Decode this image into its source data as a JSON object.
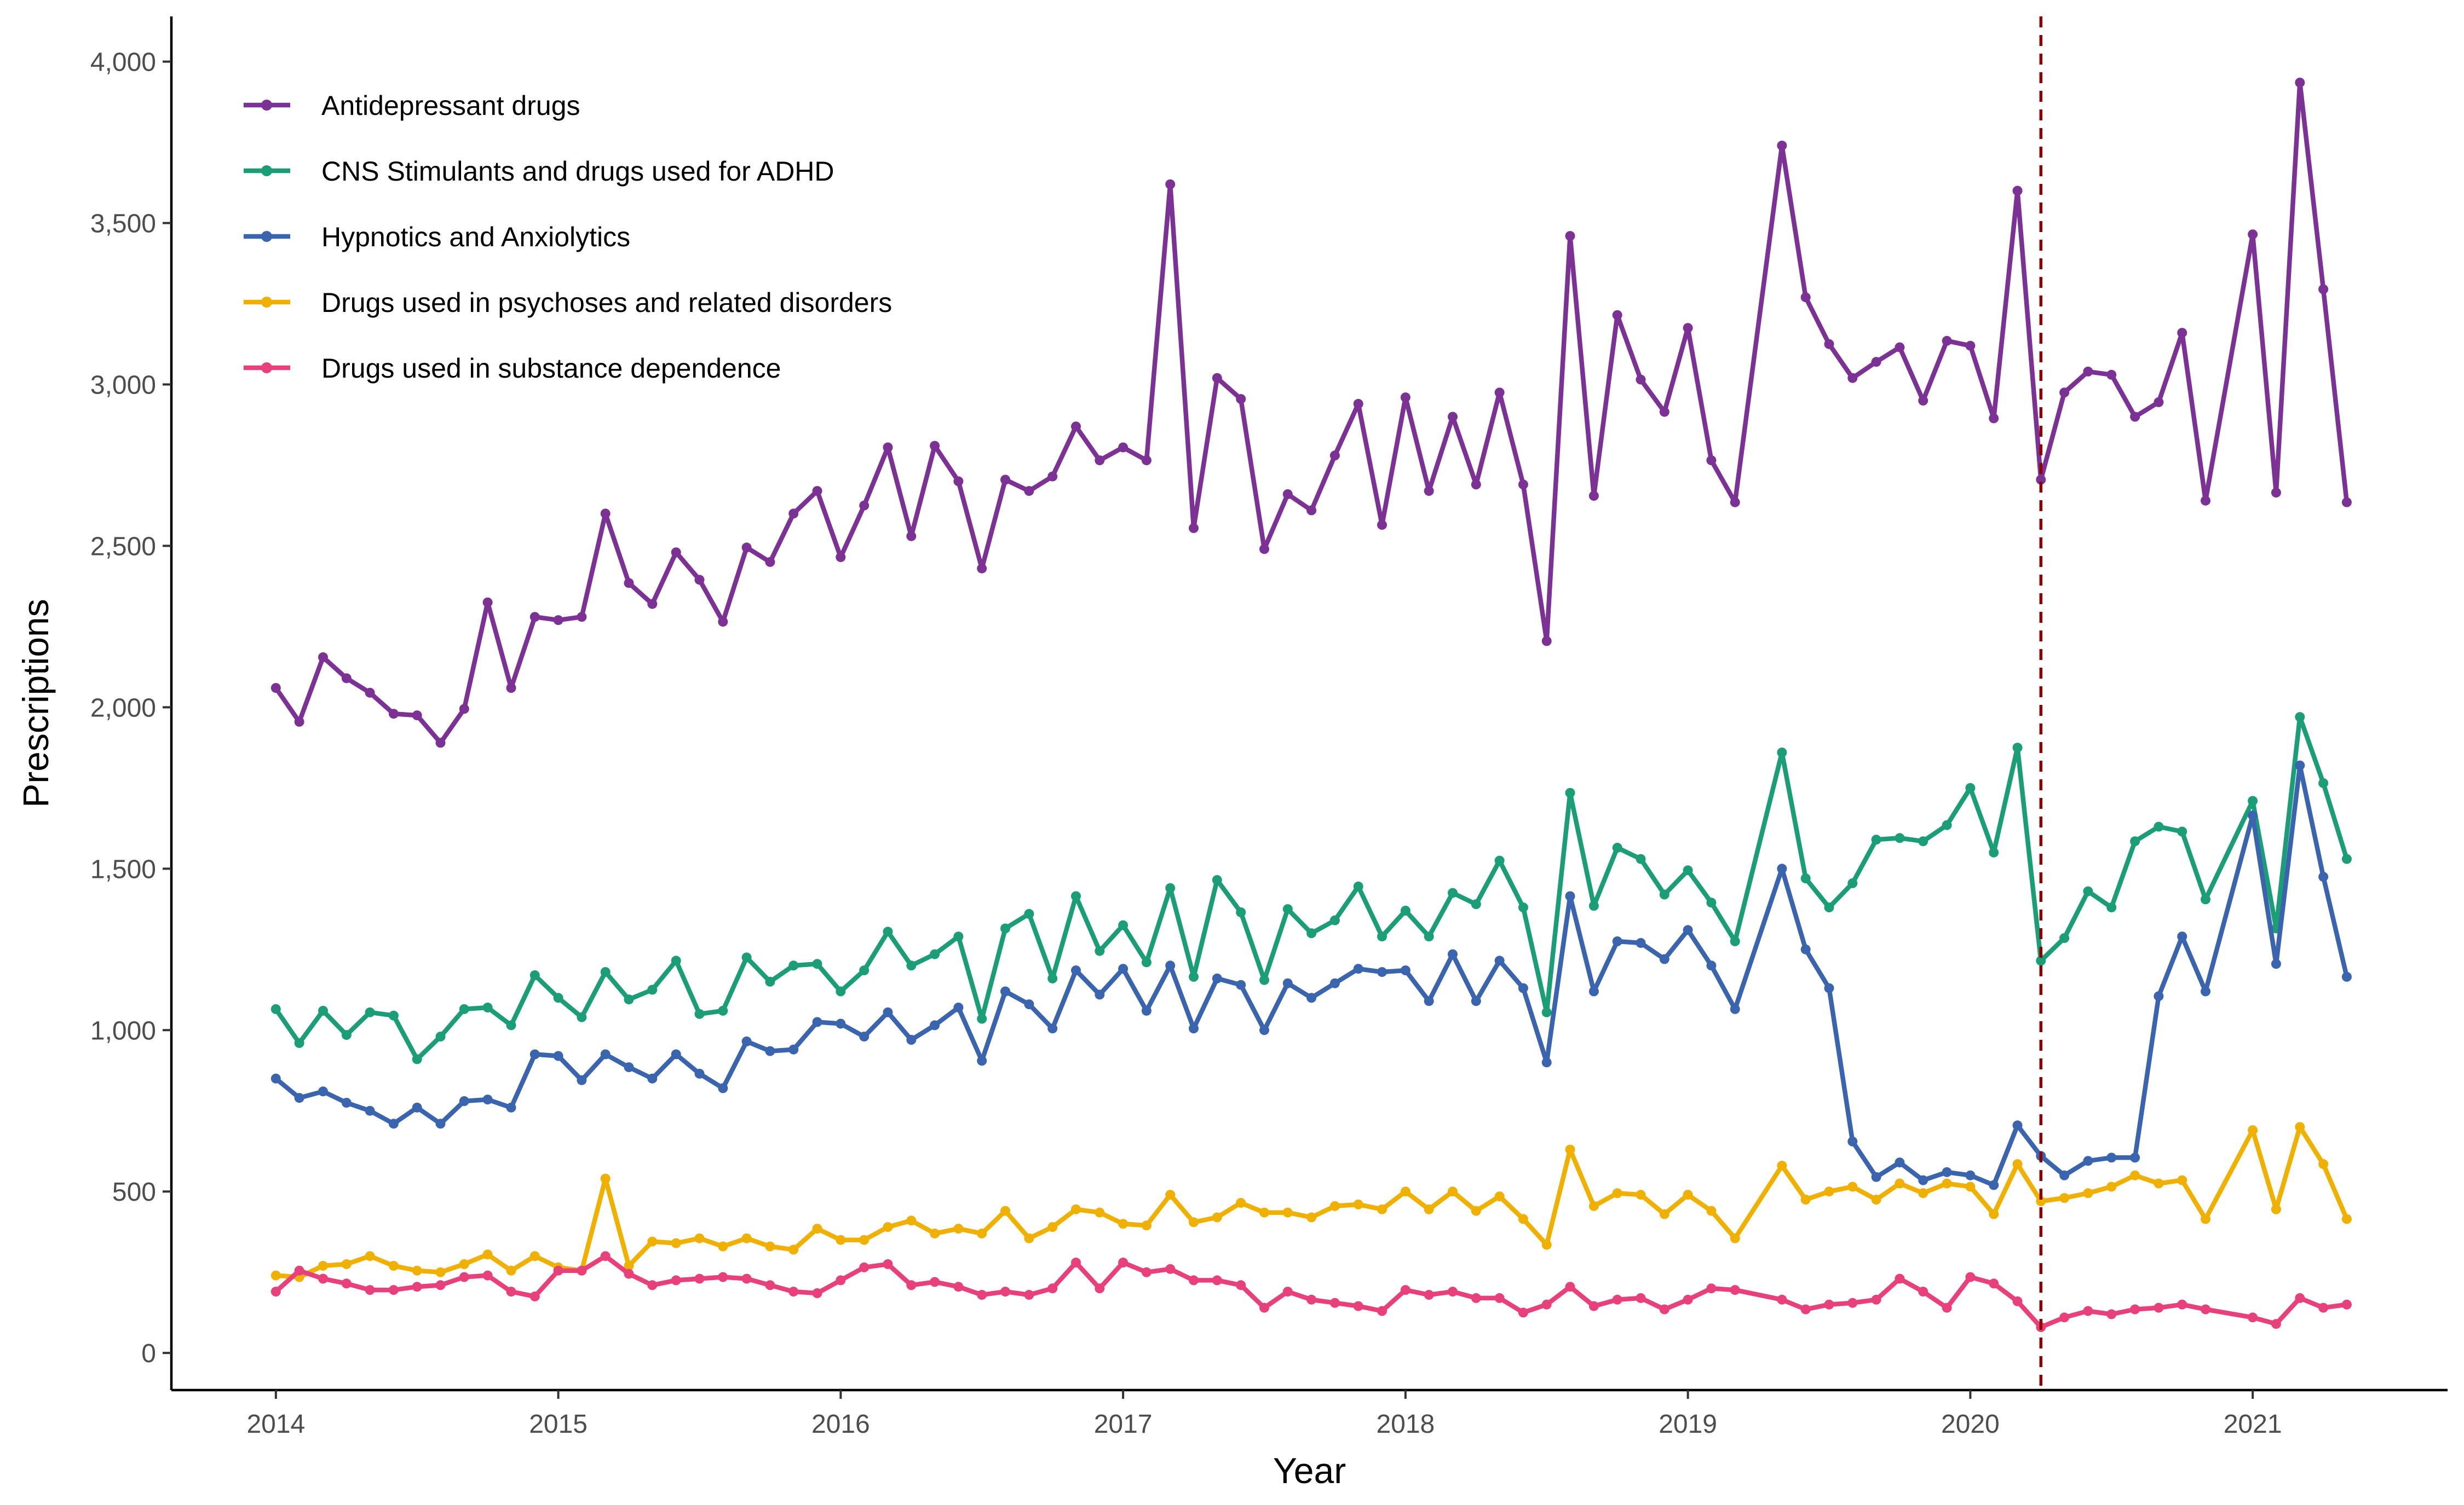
{
  "chart_data": {
    "type": "line",
    "title": "",
    "xlabel": "Year",
    "ylabel": "Prescriptions",
    "xlim": [
      2013.63,
      2021.69
    ],
    "ylim": [
      -115,
      4140
    ],
    "x_ticks": [
      2014,
      2015,
      2016,
      2017,
      2018,
      2019,
      2020,
      2021
    ],
    "x_tick_labels": [
      "2014",
      "2015",
      "2016",
      "2017",
      "2018",
      "2019",
      "2020",
      "2021"
    ],
    "y_ticks": [
      0,
      500,
      1000,
      1500,
      2000,
      2500,
      3000,
      3500,
      4000
    ],
    "y_tick_labels": [
      "0",
      "500",
      "1,000",
      "1,500",
      "2,000",
      "2,500",
      "3,000",
      "3,500",
      "4,000"
    ],
    "grid": false,
    "legend_position": "top-left",
    "reference_line": {
      "x": 2020.25,
      "color": "#8b0000",
      "style": "dashed"
    },
    "x": [
      2014.0,
      2014.083,
      2014.167,
      2014.25,
      2014.333,
      2014.417,
      2014.5,
      2014.583,
      2014.667,
      2014.75,
      2014.833,
      2014.917,
      2015.0,
      2015.083,
      2015.167,
      2015.25,
      2015.333,
      2015.417,
      2015.5,
      2015.583,
      2015.667,
      2015.75,
      2015.833,
      2015.917,
      2016.0,
      2016.083,
      2016.167,
      2016.25,
      2016.333,
      2016.417,
      2016.5,
      2016.583,
      2016.667,
      2016.75,
      2016.833,
      2016.917,
      2017.0,
      2017.083,
      2017.167,
      2017.25,
      2017.333,
      2017.417,
      2017.5,
      2017.583,
      2017.667,
      2017.75,
      2017.833,
      2017.917,
      2018.0,
      2018.083,
      2018.167,
      2018.25,
      2018.333,
      2018.417,
      2018.5,
      2018.583,
      2018.667,
      2018.75,
      2018.833,
      2018.917,
      2019.0,
      2019.083,
      2019.167,
      2019.333,
      2019.417,
      2019.5,
      2019.583,
      2019.667,
      2019.75,
      2019.833,
      2019.917,
      2020.0,
      2020.083,
      2020.167,
      2020.25,
      2020.333,
      2020.417,
      2020.5,
      2020.583,
      2020.667,
      2020.75,
      2020.833,
      2021.0,
      2021.083,
      2021.167,
      2021.25,
      2021.333
    ],
    "series": [
      {
        "name": "Antidepressant drugs",
        "color": "#7b3294",
        "values": [
          2060,
          1955,
          2155,
          2090,
          2045,
          1980,
          1975,
          1890,
          1995,
          2325,
          2060,
          2280,
          2270,
          2280,
          2600,
          2385,
          2320,
          2480,
          2395,
          2265,
          2495,
          2450,
          2600,
          2670,
          2465,
          2625,
          2805,
          2530,
          2810,
          2700,
          2430,
          2705,
          2670,
          2715,
          2870,
          2765,
          2805,
          2765,
          3620,
          2555,
          3020,
          2955,
          2490,
          2660,
          2610,
          2780,
          2940,
          2565,
          2960,
          2670,
          2900,
          2690,
          2975,
          2690,
          2205,
          3460,
          2655,
          3215,
          3015,
          2915,
          3175,
          2765,
          2635,
          3740,
          3270,
          3125,
          3020,
          3070,
          3115,
          2950,
          3135,
          3120,
          2895,
          3600,
          2705,
          2975,
          3040,
          3030,
          2900,
          2945,
          3160,
          2640,
          3465,
          2665,
          3935,
          3295,
          2635
        ]
      },
      {
        "name": "CNS Stimulants and drugs used for ADHD",
        "color": "#1b9e77",
        "values": [
          1065,
          960,
          1060,
          985,
          1055,
          1045,
          910,
          980,
          1065,
          1070,
          1015,
          1170,
          1100,
          1040,
          1180,
          1095,
          1125,
          1215,
          1050,
          1060,
          1225,
          1150,
          1200,
          1205,
          1120,
          1185,
          1305,
          1200,
          1235,
          1290,
          1035,
          1315,
          1360,
          1160,
          1415,
          1245,
          1325,
          1210,
          1440,
          1165,
          1465,
          1365,
          1155,
          1375,
          1300,
          1340,
          1445,
          1290,
          1370,
          1290,
          1425,
          1390,
          1525,
          1380,
          1055,
          1735,
          1385,
          1565,
          1530,
          1420,
          1495,
          1395,
          1275,
          1860,
          1470,
          1380,
          1455,
          1590,
          1595,
          1585,
          1635,
          1750,
          1550,
          1875,
          1215,
          1285,
          1430,
          1380,
          1585,
          1630,
          1615,
          1405,
          1710,
          1315,
          1970,
          1765,
          1530
        ]
      },
      {
        "name": "Hypnotics and Anxiolytics",
        "color": "#3a65ae",
        "values": [
          850,
          790,
          810,
          775,
          750,
          710,
          760,
          710,
          780,
          785,
          760,
          925,
          920,
          845,
          925,
          885,
          850,
          925,
          865,
          820,
          965,
          935,
          940,
          1025,
          1020,
          980,
          1055,
          970,
          1015,
          1070,
          905,
          1120,
          1080,
          1005,
          1185,
          1110,
          1190,
          1060,
          1200,
          1005,
          1160,
          1140,
          1000,
          1145,
          1100,
          1145,
          1190,
          1180,
          1185,
          1090,
          1235,
          1090,
          1215,
          1130,
          900,
          1415,
          1120,
          1275,
          1270,
          1220,
          1310,
          1200,
          1065,
          1500,
          1250,
          1130,
          655,
          545,
          590,
          535,
          560,
          550,
          520,
          705,
          610,
          550,
          595,
          605,
          605,
          1105,
          1290,
          1120,
          1665,
          1205,
          1820,
          1475,
          1165
        ]
      },
      {
        "name": "Drugs used in psychoses and related disorders",
        "color": "#efb000",
        "values": [
          240,
          235,
          270,
          275,
          300,
          270,
          255,
          250,
          275,
          305,
          255,
          300,
          265,
          255,
          540,
          270,
          345,
          340,
          355,
          330,
          355,
          330,
          320,
          385,
          350,
          350,
          390,
          410,
          370,
          385,
          370,
          440,
          355,
          390,
          445,
          435,
          400,
          395,
          490,
          405,
          420,
          465,
          435,
          435,
          420,
          455,
          460,
          445,
          500,
          445,
          500,
          440,
          485,
          415,
          335,
          630,
          455,
          495,
          490,
          430,
          490,
          440,
          355,
          580,
          475,
          500,
          515,
          475,
          525,
          495,
          525,
          515,
          430,
          585,
          470,
          480,
          495,
          515,
          550,
          525,
          535,
          415,
          690,
          445,
          700,
          585,
          415
        ]
      },
      {
        "name": "Drugs used in substance dependence",
        "color": "#e7407a",
        "values": [
          190,
          255,
          230,
          215,
          195,
          195,
          205,
          210,
          235,
          240,
          190,
          175,
          255,
          255,
          300,
          245,
          210,
          225,
          230,
          235,
          230,
          210,
          190,
          185,
          225,
          265,
          275,
          210,
          220,
          205,
          180,
          190,
          180,
          200,
          280,
          200,
          280,
          250,
          260,
          225,
          225,
          210,
          140,
          190,
          165,
          155,
          145,
          130,
          195,
          180,
          190,
          170,
          170,
          125,
          150,
          205,
          145,
          165,
          170,
          135,
          165,
          200,
          195,
          165,
          135,
          150,
          155,
          165,
          230,
          190,
          140,
          235,
          215,
          160,
          80,
          110,
          130,
          120,
          135,
          140,
          150,
          135,
          110,
          90,
          170,
          140,
          150
        ]
      }
    ]
  }
}
